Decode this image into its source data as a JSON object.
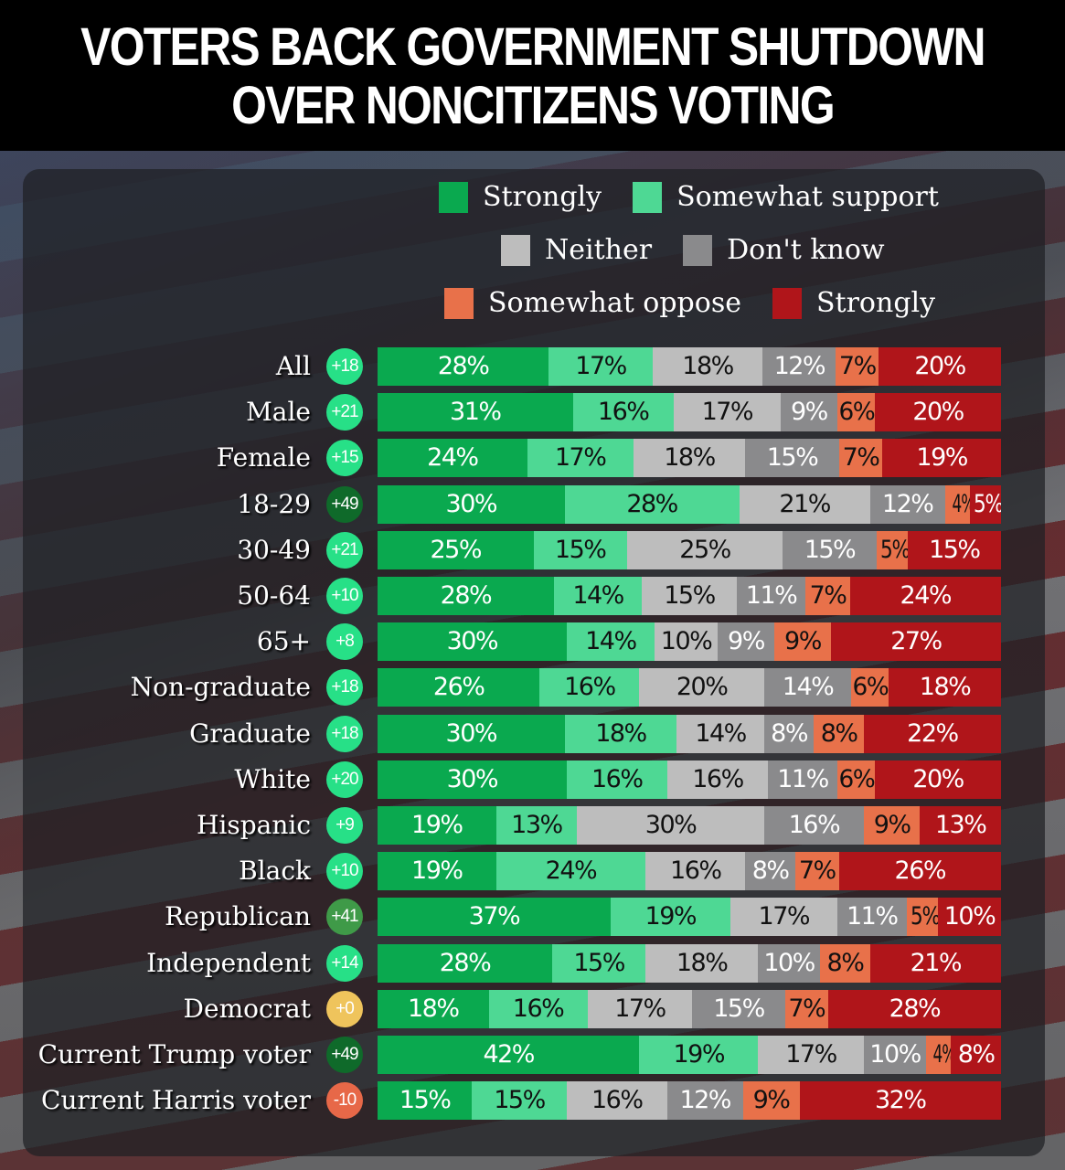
{
  "title_lines": [
    "VOTERS BACK GOVERNMENT SHUTDOWN",
    "OVER NONCITIZENS VOTING"
  ],
  "chart_data": {
    "type": "bar",
    "orientation": "horizontal-stacked-100",
    "title": "VOTERS BACK GOVERNMENT SHUTDOWN OVER NONCITIZENS VOTING",
    "legend": [
      "Strongly",
      "Somewhat support",
      "Neither",
      "Don't know",
      "Somewhat oppose",
      "Strongly"
    ],
    "legend_placement": "top",
    "colors": [
      "#0aa94f",
      "#4ed894",
      "#bdbdbd",
      "#8a8a8c",
      "#e8714a",
      "#b0151a"
    ],
    "text_colors": [
      "#ffffff",
      "#111111",
      "#111111",
      "#ffffff",
      "#111111",
      "#ffffff"
    ],
    "categories": [
      "All",
      "Male",
      "Female",
      "18-29",
      "30-49",
      "50-64",
      "65+",
      "Non-graduate",
      "Graduate",
      "White",
      "Hispanic",
      "Black",
      "Republican",
      "Independent",
      "Democrat",
      "Current Trump voter",
      "Current Harris voter"
    ],
    "net": [
      "+18",
      "+21",
      "+15",
      "+49",
      "+21",
      "+10",
      "+8",
      "+18",
      "+18",
      "+20",
      "+9",
      "+10",
      "+41",
      "+14",
      "+0",
      "+49",
      "-10"
    ],
    "net_colors": [
      "#27e087",
      "#27e087",
      "#27e087",
      "#0f6a2a",
      "#27e087",
      "#27e087",
      "#27e087",
      "#27e087",
      "#27e087",
      "#27e087",
      "#27e087",
      "#27e087",
      "#3f9a48",
      "#27e087",
      "#efc45c",
      "#0f6a2a",
      "#e76848"
    ],
    "series": [
      {
        "name": "Strongly support",
        "values": [
          28,
          31,
          24,
          30,
          25,
          28,
          30,
          26,
          30,
          30,
          19,
          19,
          37,
          28,
          18,
          42,
          15
        ]
      },
      {
        "name": "Somewhat support",
        "values": [
          17,
          16,
          17,
          28,
          15,
          14,
          14,
          16,
          18,
          16,
          13,
          24,
          19,
          15,
          16,
          19,
          15
        ]
      },
      {
        "name": "Neither",
        "values": [
          18,
          17,
          18,
          21,
          25,
          15,
          10,
          20,
          14,
          16,
          30,
          16,
          17,
          18,
          17,
          17,
          16
        ]
      },
      {
        "name": "Don't know",
        "values": [
          12,
          9,
          15,
          12,
          15,
          11,
          9,
          14,
          8,
          11,
          16,
          8,
          11,
          10,
          15,
          10,
          12
        ]
      },
      {
        "name": "Somewhat oppose",
        "values": [
          7,
          6,
          7,
          4,
          5,
          7,
          9,
          6,
          8,
          6,
          9,
          7,
          5,
          8,
          7,
          4,
          9
        ]
      },
      {
        "name": "Strongly oppose",
        "values": [
          20,
          20,
          19,
          5,
          15,
          24,
          27,
          18,
          22,
          20,
          13,
          26,
          10,
          21,
          28,
          8,
          32
        ]
      }
    ],
    "unit": "%"
  }
}
